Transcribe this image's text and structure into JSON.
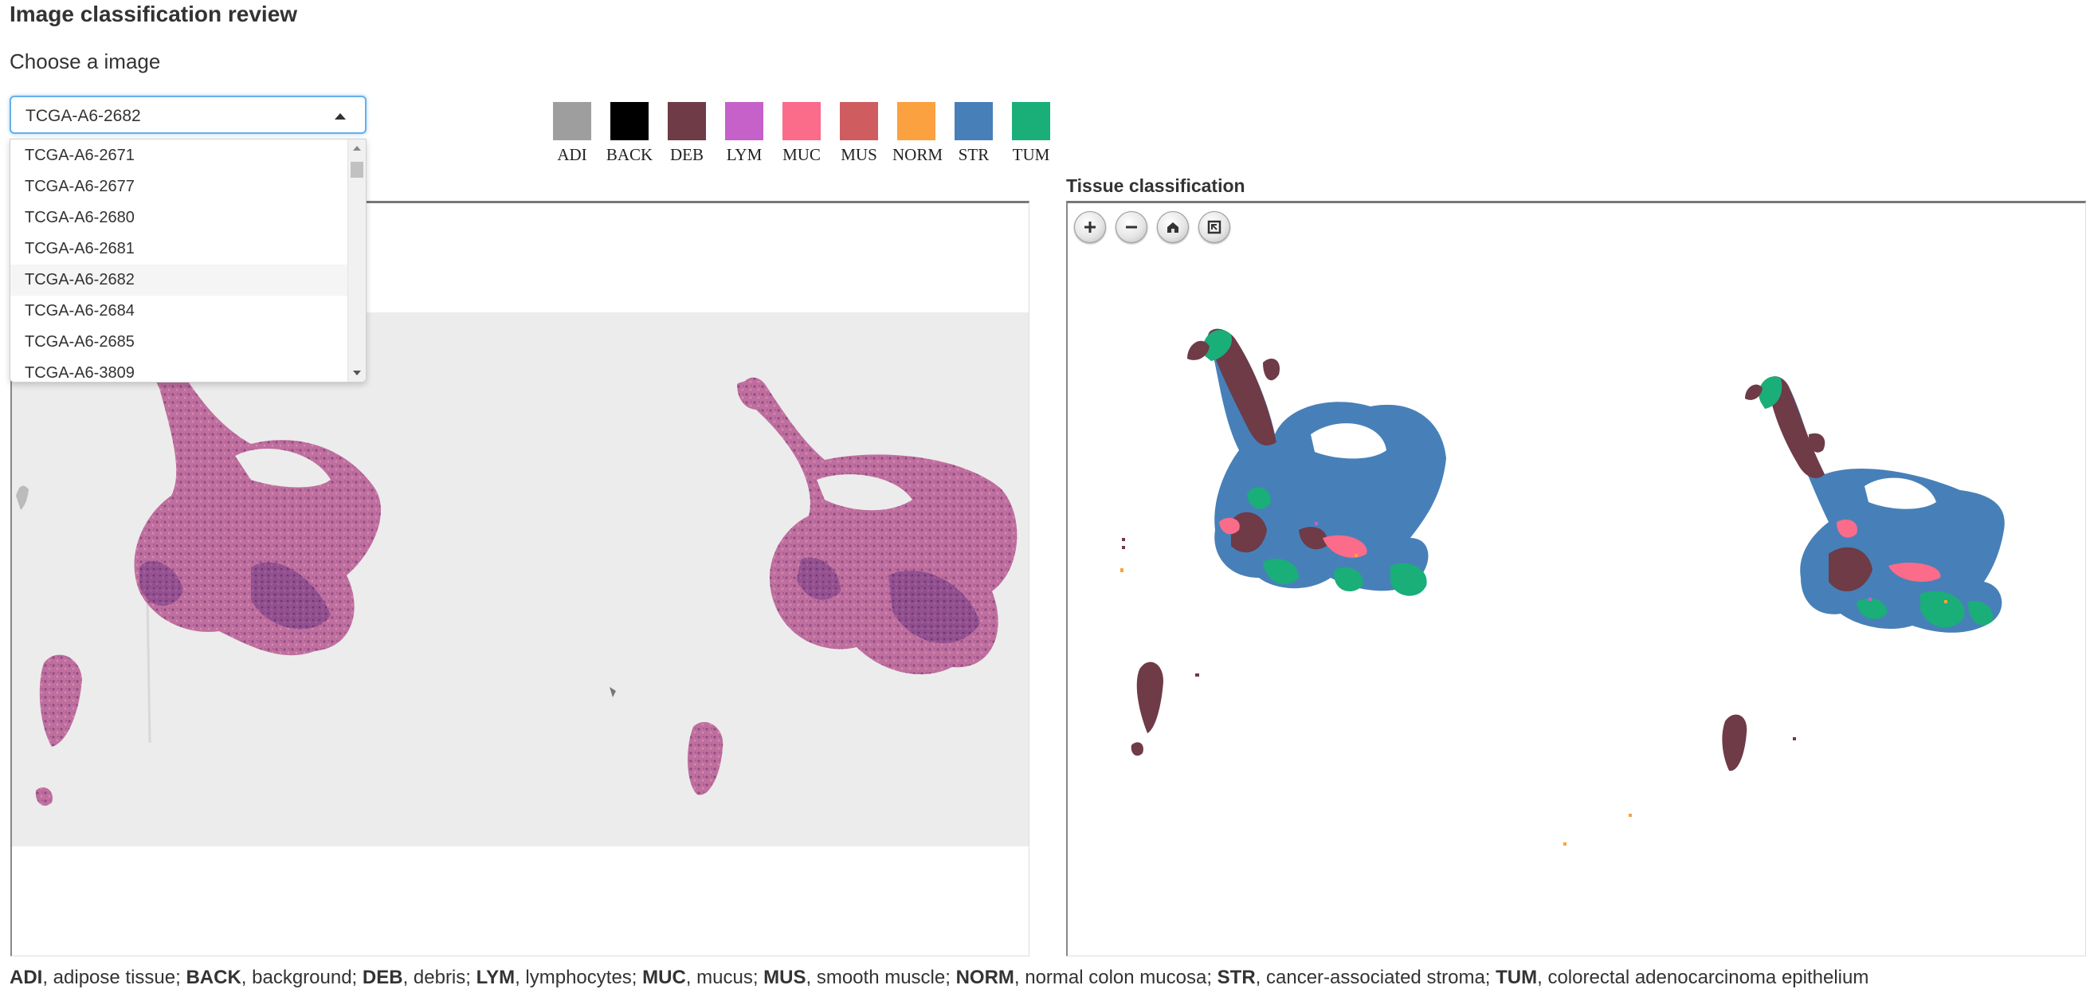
{
  "page": {
    "title": "Image classification review",
    "choose_label": "Choose a image"
  },
  "select": {
    "value": "TCGA-A6-2682",
    "options": [
      "TCGA-A6-2671",
      "TCGA-A6-2677",
      "TCGA-A6-2680",
      "TCGA-A6-2681",
      "TCGA-A6-2682",
      "TCGA-A6-2684",
      "TCGA-A6-2685",
      "TCGA-A6-3809"
    ],
    "selected_index": 4
  },
  "legend": [
    {
      "code": "ADI",
      "color": "#9e9e9e"
    },
    {
      "code": "BACK",
      "color": "#000000"
    },
    {
      "code": "DEB",
      "color": "#6e3b47"
    },
    {
      "code": "LYM",
      "color": "#c561c8"
    },
    {
      "code": "MUC",
      "color": "#fb6b8a"
    },
    {
      "code": "MUS",
      "color": "#cf5c5f"
    },
    {
      "code": "NORM",
      "color": "#fba140"
    },
    {
      "code": "STR",
      "color": "#4780b8"
    },
    {
      "code": "TUM",
      "color": "#1aae78"
    }
  ],
  "right_panel": {
    "title": "Tissue classification",
    "controls": [
      {
        "name": "zoom-in-button",
        "icon": "plus-icon"
      },
      {
        "name": "zoom-out-button",
        "icon": "minus-icon"
      },
      {
        "name": "home-button",
        "icon": "home-icon"
      },
      {
        "name": "fullscreen-button",
        "icon": "fullscreen-icon"
      }
    ]
  },
  "footer": [
    {
      "code": "ADI",
      "desc": ", adipose tissue; "
    },
    {
      "code": "BACK",
      "desc": ", background; "
    },
    {
      "code": "DEB",
      "desc": ", debris; "
    },
    {
      "code": "LYM",
      "desc": ", lymphocytes; "
    },
    {
      "code": "MUC",
      "desc": ", mucus; "
    },
    {
      "code": "MUS",
      "desc": ", smooth muscle; "
    },
    {
      "code": "NORM",
      "desc": ", normal colon mucosa; "
    },
    {
      "code": "STR",
      "desc": ", cancer-associated stroma; "
    },
    {
      "code": "TUM",
      "desc": ", colorectal adenocarcinoma epithelium"
    }
  ]
}
